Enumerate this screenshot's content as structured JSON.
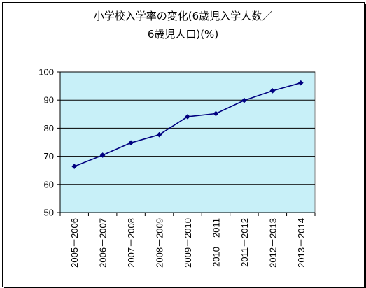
{
  "chart_data": {
    "type": "line",
    "title_line1": "小学校入学率の変化(6歳児入学人数／",
    "title_line2": "6歳児人口)(%)",
    "categories": [
      "2005－2006",
      "2006－2007",
      "2007－2008",
      "2008－2009",
      "2009－2010",
      "2010－2011",
      "2011－2012",
      "2012－2013",
      "2013－2014"
    ],
    "series": [
      {
        "values": [
          66.4,
          70.4,
          74.8,
          77.7,
          84.1,
          85.2,
          89.9,
          93.3,
          96.1
        ]
      }
    ],
    "yticks": [
      "50",
      "60",
      "70",
      "80",
      "90",
      "100"
    ],
    "ylim": [
      50,
      100
    ],
    "grid": true,
    "legend": "none",
    "colors": {
      "plot_bg": "#c8f0f8",
      "line": "#000080",
      "grid": "#000000"
    }
  }
}
